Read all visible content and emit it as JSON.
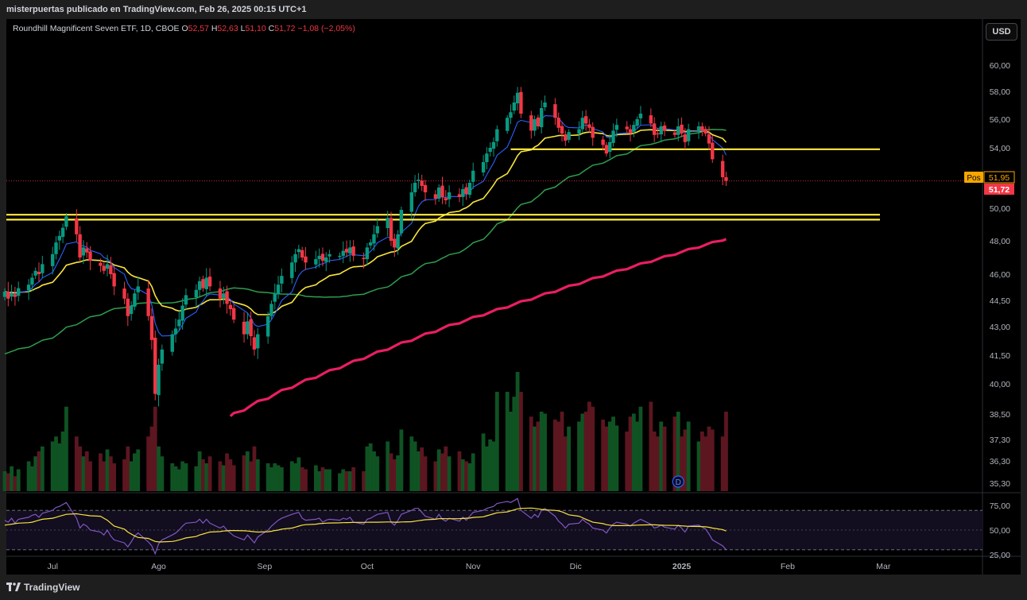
{
  "header": {
    "publisher": "misterpuertas publicado en TradingView.com, Feb 26, 2025 00:15 UTC+1"
  },
  "legend": {
    "symbol": "Roundhill Magnificent Seven ETF, 1D, CBOE",
    "o_label": "O",
    "o_value": "52,57",
    "h_label": "H",
    "h_value": "52,63",
    "l_label": "L",
    "l_value": "51,10",
    "c_label": "C",
    "c_value": "51,72",
    "change": "−1,08 (−2,05%)"
  },
  "currency_button": "USD",
  "footer": {
    "brand": "TradingView"
  },
  "colors": {
    "up": "#089981",
    "down": "#f23645",
    "ema_fast": "#2962ff",
    "ema_mid": "#f7e43c",
    "sma_50": "#2e9e4e",
    "sma_200": "#e91e63",
    "levels": "#ffeb3b",
    "rsi": "#7e57c2"
  },
  "chart_data": {
    "type": "candlestick",
    "price_axis": [
      "60,00",
      "58,00",
      "56,00",
      "54,00",
      "52,00",
      "50,00",
      "48,00",
      "46,00",
      "44,50",
      "43,00",
      "41,50",
      "40,00",
      "38,50",
      "37,30",
      "36,30",
      "35,30"
    ],
    "price_axis_values": [
      60,
      58,
      56,
      54,
      52,
      50,
      48,
      46,
      44.5,
      43,
      41.5,
      40,
      38.5,
      37.3,
      36.3,
      35.3
    ],
    "x_ticks": [
      "Jul",
      "Ago",
      "Sep",
      "Oct",
      "Nov",
      "Dic",
      "2025",
      "Feb",
      "Mar"
    ],
    "x_tick_dates": [
      "2024-07-01",
      "2024-08-01",
      "2024-09-01",
      "2024-10-01",
      "2024-11-01",
      "2024-12-01",
      "2025-01-01",
      "2025-02-01",
      "2025-03-01"
    ],
    "price_labels": [
      {
        "tag": "Pos",
        "value": "51,95"
      },
      {
        "tag": "",
        "value": "51,72"
      }
    ],
    "horizontal_levels": [
      {
        "value": 53.9,
        "from": "2024-11-12",
        "to": "2025-02-28"
      },
      {
        "value": 49.6,
        "from": "2024-06-17",
        "to": "2025-02-28"
      },
      {
        "value": 49.3,
        "from": "2024-06-17",
        "to": "2025-02-28"
      }
    ],
    "earnings_marker": "D",
    "earnings_date": "2024-12-31",
    "candles_start": "2024-06-17",
    "closes": [
      45.0,
      44.6,
      44.9,
      44.7,
      45.2,
      45.4,
      45.8,
      46.2,
      46.0,
      46.6,
      47.2,
      47.9,
      48.3,
      48.8,
      49.5,
      48.4,
      47.0,
      47.6,
      47.3,
      46.8,
      46.5,
      46.2,
      46.6,
      46.0,
      45.3,
      44.6,
      43.6,
      44.2,
      44.9,
      45.3,
      43.6,
      42.3,
      39.5,
      41.0,
      41.8,
      42.6,
      42.9,
      43.4,
      44.2,
      44.8,
      45.1,
      45.6,
      45.2,
      45.8,
      45.3,
      44.6,
      44.9,
      44.3,
      44.0,
      43.4,
      42.6,
      43.3,
      42.5,
      41.8,
      42.6,
      43.6,
      44.3,
      44.9,
      45.4,
      45.9,
      46.7,
      47.2,
      47.5,
      47.0,
      46.7,
      46.9,
      47.1,
      46.8,
      47.0,
      47.2,
      47.1,
      47.4,
      47.3,
      47.6,
      47.1,
      46.9,
      47.6,
      47.9,
      48.4,
      48.9,
      49.4,
      48.0,
      47.6,
      48.4,
      49.9,
      51.0,
      51.6,
      51.8,
      51.4,
      51.0,
      50.6,
      51.3,
      50.7,
      50.5,
      51.0,
      50.7,
      51.2,
      50.9,
      51.6,
      52.4,
      53.0,
      53.6,
      54.0,
      54.4,
      55.3,
      56.1,
      56.5,
      57.2,
      57.9,
      56.4,
      55.2,
      56.0,
      55.5,
      56.8,
      57.2,
      56.1,
      55.4,
      55.0,
      54.5,
      55.1,
      55.3,
      56.1,
      55.7,
      55.4,
      54.7,
      54.2,
      53.6,
      54.4,
      55.2,
      55.6,
      55.3,
      55.0,
      55.6,
      56.0,
      56.4,
      55.7,
      54.9,
      55.0,
      55.5,
      55.2,
      54.9,
      55.5,
      55.0,
      54.4,
      55.3,
      55.5,
      55.2,
      55.0,
      54.3,
      53.2,
      51.95,
      51.72
    ],
    "volume_relative": [
      0.2,
      0.18,
      0.25,
      0.15,
      0.22,
      0.3,
      0.25,
      0.35,
      0.4,
      0.45,
      0.5,
      0.55,
      0.48,
      0.6,
      0.85,
      0.55,
      0.45,
      0.35,
      0.4,
      0.3,
      0.38,
      0.3,
      0.42,
      0.35,
      0.28,
      0.32,
      0.45,
      0.3,
      0.38,
      0.42,
      0.55,
      0.65,
      0.85,
      0.45,
      0.35,
      0.28,
      0.25,
      0.22,
      0.3,
      0.28,
      0.25,
      0.4,
      0.32,
      0.28,
      0.35,
      0.3,
      0.26,
      0.38,
      0.32,
      0.26,
      0.36,
      0.4,
      0.3,
      0.45,
      0.32,
      0.28,
      0.24,
      0.28,
      0.26,
      0.24,
      0.3,
      0.28,
      0.34,
      0.24,
      0.22,
      0.26,
      0.2,
      0.24,
      0.22,
      0.22,
      0.18,
      0.22,
      0.2,
      0.2,
      0.24,
      0.2,
      0.45,
      0.48,
      0.4,
      0.35,
      0.5,
      0.38,
      0.32,
      0.36,
      0.62,
      0.55,
      0.5,
      0.4,
      0.44,
      0.35,
      0.3,
      0.42,
      0.38,
      0.45,
      0.35,
      0.4,
      0.32,
      0.3,
      0.28,
      0.38,
      0.58,
      0.45,
      0.52,
      0.5,
      1.0,
      1.0,
      0.8,
      0.95,
      1.2,
      1.0,
      0.75,
      0.65,
      0.7,
      0.8,
      0.78,
      0.72,
      0.7,
      0.8,
      0.55,
      0.65,
      0.7,
      0.78,
      0.8,
      0.9,
      0.85,
      0.72,
      0.65,
      0.7,
      0.75,
      0.66,
      0.6,
      0.75,
      0.78,
      0.7,
      0.85,
      0.9,
      0.6,
      0.55,
      0.7,
      0.65,
      0.75,
      0.8,
      0.55,
      0.62,
      0.7,
      0.5,
      0.6,
      0.55,
      0.65,
      0.62,
      0.55,
      0.8
    ],
    "rsi": {
      "axis": [
        "75,00",
        "50,00",
        "25,00"
      ],
      "axis_values": [
        75,
        50,
        25
      ],
      "upper": 70,
      "lower": 30,
      "values": [
        60,
        58,
        62,
        57,
        61,
        63,
        65,
        66,
        63,
        67,
        70,
        73,
        74,
        76,
        78,
        62,
        52,
        56,
        54,
        50,
        48,
        45,
        50,
        44,
        40,
        37,
        33,
        38,
        44,
        47,
        38,
        34,
        26,
        36,
        40,
        45,
        47,
        50,
        54,
        57,
        58,
        61,
        57,
        61,
        57,
        52,
        54,
        50,
        47,
        44,
        40,
        45,
        41,
        37,
        43,
        50,
        54,
        57,
        60,
        62,
        66,
        67,
        68,
        62,
        60,
        61,
        62,
        58,
        60,
        61,
        60,
        62,
        61,
        63,
        58,
        56,
        61,
        62,
        64,
        66,
        68,
        58,
        55,
        60,
        66,
        70,
        72,
        72,
        68,
        64,
        61,
        66,
        61,
        59,
        62,
        59,
        63,
        60,
        64,
        68,
        70,
        72,
        73,
        74,
        77,
        79,
        78,
        80,
        82,
        70,
        62,
        66,
        63,
        70,
        72,
        64,
        59,
        56,
        52,
        56,
        57,
        61,
        58,
        56,
        52,
        50,
        47,
        52,
        56,
        58,
        56,
        54,
        57,
        59,
        61,
        56,
        52,
        53,
        55,
        53,
        51,
        55,
        52,
        48,
        54,
        55,
        53,
        51,
        46,
        40,
        34,
        30
      ],
      "ma": [
        55,
        55.5,
        56,
        56.5,
        57,
        57.5,
        58,
        59,
        60,
        61,
        62,
        63,
        64,
        65,
        66,
        66.5,
        66,
        65.5,
        65,
        64.5,
        64,
        62,
        60,
        57,
        54,
        51,
        48,
        46,
        44,
        42.5,
        41.5,
        40,
        38.5,
        38,
        38,
        38.5,
        39,
        40,
        41,
        42,
        43.5,
        45,
        46,
        47,
        48,
        48.5,
        49,
        49.3,
        49.5,
        49.5,
        49.3,
        49,
        48.7,
        48.3,
        48,
        48.3,
        48.8,
        49.5,
        50,
        51,
        52,
        53,
        54,
        55,
        55.5,
        56,
        56.5,
        56.8,
        57,
        57.2,
        57.3,
        57.5,
        57.6,
        57.7,
        57.8,
        57.8,
        57.9,
        58,
        58,
        58,
        58.2,
        58.2,
        58,
        58,
        58.2,
        58.5,
        59,
        59.5,
        60,
        60.5,
        61,
        61.5,
        61.6,
        61.5,
        61.5,
        61.6,
        61.8,
        62,
        62.2,
        62.8,
        63.5,
        64.5,
        65.5,
        66.5,
        67.5,
        68.5,
        69.5,
        70.5,
        71.5,
        72,
        72.3,
        72,
        71.5,
        71,
        70.5,
        70,
        69.5,
        68.5,
        67,
        65.5,
        64,
        62.5,
        61,
        59.5,
        58,
        56.5,
        55.5,
        55,
        54.5,
        54.5,
        54.5,
        54.6,
        54.8,
        55,
        55.2,
        55.3,
        55.3,
        55.2,
        55,
        54.8,
        54.7,
        54.5,
        54.3,
        54,
        53.8,
        53.6,
        53.5,
        53.3,
        52.8,
        52,
        50.5,
        49
      ]
    }
  }
}
